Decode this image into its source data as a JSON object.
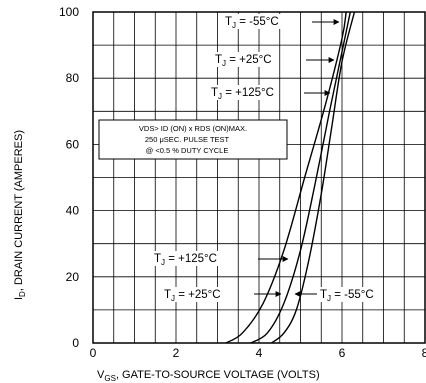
{
  "chart_data": {
    "type": "line",
    "xlabel_main": "V",
    "xlabel_sub": "GS",
    "xlabel_rest": ", GATE-TO-SOURCE VOLTAGE (VOLTS)",
    "ylabel_main": "I",
    "ylabel_sub": "D",
    "ylabel_rest": ", DRAIN CURRENT (AMPERES)",
    "xlim": [
      0,
      8
    ],
    "ylim": [
      0,
      100
    ],
    "x_ticks": [
      "0",
      "2",
      "4",
      "6",
      "8"
    ],
    "y_ticks": [
      "0",
      "20",
      "40",
      "60",
      "80",
      "100"
    ],
    "grid": true,
    "conditions": {
      "line1": "VDS> ID (ON) x RDS (ON)MAX.",
      "line2": "250 μSEC. PULSE TEST",
      "line3": "@ <0.5 % DUTY CYCLE"
    },
    "series": [
      {
        "name": "TJ = -55°C",
        "x": [
          4.3,
          4.6,
          4.9,
          5.2,
          5.5,
          5.75,
          6.0,
          6.3
        ],
        "y": [
          0,
          3,
          10,
          25,
          45,
          65,
          85,
          100
        ]
      },
      {
        "name": "TJ = +25°C",
        "x": [
          3.8,
          4.2,
          4.6,
          5.0,
          5.35,
          5.7,
          6.0,
          6.2
        ],
        "y": [
          0,
          3,
          12,
          28,
          48,
          70,
          88,
          100
        ]
      },
      {
        "name": "TJ = +125°C",
        "x": [
          3.2,
          3.6,
          4.1,
          4.6,
          5.1,
          5.6,
          6.0,
          6.1
        ],
        "y": [
          0,
          3,
          12,
          28,
          50,
          72,
          92,
          100
        ]
      }
    ],
    "annotations": [
      {
        "text_pre": "T",
        "text_sub": "J",
        "text_post": " = -55°C",
        "series": 0
      },
      {
        "text_pre": "T",
        "text_sub": "J",
        "text_post": " = +25°C",
        "series": 1
      },
      {
        "text_pre": "T",
        "text_sub": "J",
        "text_post": " = +125°C",
        "series": 2
      },
      {
        "text_pre": "T",
        "text_sub": "J",
        "text_post": " = +125°C",
        "series": 2
      },
      {
        "text_pre": "T",
        "text_sub": "J",
        "text_post": " = +25°C",
        "series": 1
      },
      {
        "text_pre": "T",
        "text_sub": "J",
        "text_post": " = -55°C",
        "series": 0
      }
    ]
  }
}
